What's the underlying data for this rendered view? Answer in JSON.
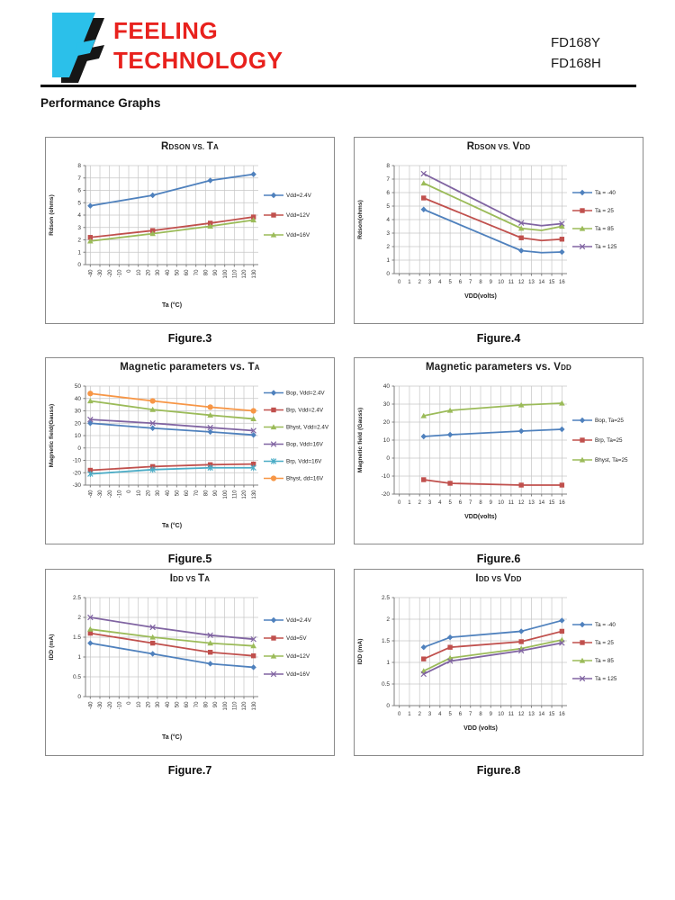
{
  "header": {
    "logo_letter": "F",
    "logo_color": "#2BC0EA",
    "logo_shadow_color": "#161616",
    "brand_line1": "FEELING",
    "brand_line2": "TECHNOLOGY",
    "brand_color": "#e8211d",
    "part_number_1": "FD168Y",
    "part_number_2": "FD168H"
  },
  "section_title": "Performance Graphs",
  "chart_data": [
    {
      "type": "line",
      "figure": "Figure.3",
      "title": [
        {
          "t": "R"
        },
        {
          "t": "dson",
          "small": true
        },
        {
          "t": " vs. ",
          "small": true
        },
        {
          "t": "T"
        },
        {
          "t": "a",
          "small": true
        }
      ],
      "xlabel": "Ta (°C)",
      "ylabel": "Rdson (ohms)",
      "ylim": [
        0,
        8
      ],
      "ystep": 1,
      "x_axis": {
        "mode": "rotated",
        "lim": [
          -45,
          135
        ],
        "ticks": [
          -40,
          -30,
          -20,
          -10,
          0,
          10,
          20,
          30,
          40,
          50,
          60,
          70,
          80,
          90,
          100,
          110,
          120,
          130
        ]
      },
      "legend_position": "right",
      "series": [
        {
          "name": "Vdd=2.4V",
          "color": "#4F81BD",
          "marker": "diamond",
          "points": [
            [
              -40,
              4.75
            ],
            [
              25,
              5.6
            ],
            [
              85,
              6.8
            ],
            [
              130,
              7.3
            ]
          ]
        },
        {
          "name": "Vdd=12V",
          "color": "#C0504D",
          "marker": "square",
          "points": [
            [
              -40,
              2.2
            ],
            [
              25,
              2.75
            ],
            [
              85,
              3.35
            ],
            [
              130,
              3.85
            ]
          ]
        },
        {
          "name": "Vdd=16V",
          "color": "#9BBB59",
          "marker": "triangle",
          "points": [
            [
              -40,
              1.9
            ],
            [
              25,
              2.5
            ],
            [
              85,
              3.1
            ],
            [
              130,
              3.6
            ]
          ]
        }
      ]
    },
    {
      "type": "line",
      "figure": "Figure.4",
      "title": [
        {
          "t": "R"
        },
        {
          "t": "dson",
          "small": true
        },
        {
          "t": " vs. ",
          "small": true
        },
        {
          "t": "V"
        },
        {
          "t": "dd",
          "small": true
        }
      ],
      "xlabel": "VDD(volts)",
      "ylabel": "Rdson(ohms)",
      "ylim": [
        0,
        8
      ],
      "ystep": 1,
      "x_axis": {
        "mode": "linear",
        "lim": [
          -0.5,
          16.5
        ],
        "ticks": [
          0,
          1,
          2,
          3,
          4,
          5,
          6,
          7,
          8,
          9,
          10,
          11,
          12,
          13,
          14,
          15,
          16
        ]
      },
      "legend_position": "right",
      "series": [
        {
          "name": "Ta = -40",
          "color": "#4F81BD",
          "marker": "diamond",
          "points": [
            [
              2.4,
              4.75
            ],
            [
              12,
              1.7
            ],
            [
              14,
              1.55,
              0
            ],
            [
              16,
              1.6
            ]
          ]
        },
        {
          "name": "Ta = 25",
          "color": "#C0504D",
          "marker": "square",
          "points": [
            [
              2.4,
              5.6
            ],
            [
              12,
              2.65
            ],
            [
              14,
              2.45,
              0
            ],
            [
              16,
              2.55
            ]
          ]
        },
        {
          "name": "Ta = 85",
          "color": "#9BBB59",
          "marker": "triangle",
          "points": [
            [
              2.4,
              6.7
            ],
            [
              12,
              3.35
            ],
            [
              14,
              3.2,
              0
            ],
            [
              16,
              3.5
            ]
          ]
        },
        {
          "name": "Ta = 125",
          "color": "#8064A2",
          "marker": "x",
          "points": [
            [
              2.4,
              7.4
            ],
            [
              12,
              3.75
            ],
            [
              14,
              3.55,
              0
            ],
            [
              16,
              3.7
            ]
          ]
        }
      ]
    },
    {
      "type": "line",
      "figure": "Figure.5",
      "title": [
        {
          "t": "Magnetic parameters vs. T"
        },
        {
          "t": "a",
          "small": true
        }
      ],
      "xlabel": "Ta (°C)",
      "ylabel": "Magnetic field(Gauss)",
      "ylim": [
        -30,
        50
      ],
      "ystep": 10,
      "x_axis": {
        "mode": "rotated",
        "lim": [
          -45,
          135
        ],
        "ticks": [
          -40,
          -30,
          -20,
          -10,
          0,
          10,
          20,
          30,
          40,
          50,
          60,
          70,
          80,
          90,
          100,
          110,
          120,
          130
        ]
      },
      "legend_position": "right",
      "series": [
        {
          "name": "Bop, Vdd=2.4V",
          "color": "#4F81BD",
          "marker": "diamond",
          "points": [
            [
              -40,
              20
            ],
            [
              25,
              16
            ],
            [
              85,
              13
            ],
            [
              130,
              10.5
            ]
          ]
        },
        {
          "name": "Brp, Vdd=2.4V",
          "color": "#C0504D",
          "marker": "square",
          "points": [
            [
              -40,
              -18
            ],
            [
              25,
              -15
            ],
            [
              85,
              -13.5
            ],
            [
              130,
              -13
            ]
          ]
        },
        {
          "name": "Bhyst, Vdd=2.4V",
          "color": "#9BBB59",
          "marker": "triangle",
          "points": [
            [
              -40,
              38
            ],
            [
              25,
              31
            ],
            [
              85,
              26.5
            ],
            [
              130,
              23.5
            ]
          ]
        },
        {
          "name": "Bop, Vdd=16V",
          "color": "#8064A2",
          "marker": "x",
          "points": [
            [
              -40,
              23
            ],
            [
              25,
              20
            ],
            [
              85,
              16.5
            ],
            [
              130,
              14
            ]
          ]
        },
        {
          "name": "Brp, Vdd=16V",
          "color": "#4BACC6",
          "marker": "star",
          "points": [
            [
              -40,
              -21
            ],
            [
              25,
              -17.5
            ],
            [
              85,
              -16
            ],
            [
              130,
              -16
            ]
          ]
        },
        {
          "name": "Bhyst, dd=16V",
          "color": "#F79646",
          "marker": "circle",
          "points": [
            [
              -40,
              44
            ],
            [
              25,
              38
            ],
            [
              85,
              33
            ],
            [
              130,
              30
            ]
          ]
        }
      ]
    },
    {
      "type": "line",
      "figure": "Figure.6",
      "title": [
        {
          "t": "Magnetic parameters vs. V"
        },
        {
          "t": "dd",
          "small": true
        }
      ],
      "xlabel": "VDD(volts)",
      "ylabel": "Magnetic field (Gauss)",
      "ylim": [
        -20,
        40
      ],
      "ystep": 10,
      "x_axis": {
        "mode": "linear",
        "lim": [
          -0.5,
          16.5
        ],
        "ticks": [
          0,
          1,
          2,
          3,
          4,
          5,
          6,
          7,
          8,
          9,
          10,
          11,
          12,
          13,
          14,
          15,
          16
        ]
      },
      "legend_position": "right",
      "series": [
        {
          "name": "Bop, Ta=25",
          "color": "#4F81BD",
          "marker": "diamond",
          "points": [
            [
              2.4,
              12
            ],
            [
              5,
              13
            ],
            [
              12,
              15
            ],
            [
              16,
              16
            ]
          ]
        },
        {
          "name": "Brp, Ta=25",
          "color": "#C0504D",
          "marker": "square",
          "points": [
            [
              2.4,
              -12
            ],
            [
              5,
              -14
            ],
            [
              12,
              -15
            ],
            [
              16,
              -15
            ]
          ]
        },
        {
          "name": "Bhyst, Ta=25",
          "color": "#9BBB59",
          "marker": "triangle",
          "points": [
            [
              2.4,
              23.5
            ],
            [
              5,
              26.5
            ],
            [
              12,
              29.5
            ],
            [
              16,
              30.5
            ]
          ]
        }
      ]
    },
    {
      "type": "line",
      "figure": "Figure.7",
      "title": [
        {
          "t": "I"
        },
        {
          "t": "dd",
          "small": true
        },
        {
          "t": " vs ",
          "small": true
        },
        {
          "t": "T"
        },
        {
          "t": "a",
          "small": true
        }
      ],
      "xlabel": "Ta (°C)",
      "ylabel": "IDD (mA)",
      "ylim": [
        0,
        2.5
      ],
      "ystep": 0.5,
      "x_axis": {
        "mode": "rotated",
        "lim": [
          -45,
          135
        ],
        "ticks": [
          -40,
          -30,
          -20,
          -10,
          0,
          10,
          20,
          30,
          40,
          50,
          60,
          70,
          80,
          90,
          100,
          110,
          120,
          130
        ]
      },
      "legend_position": "right",
      "series": [
        {
          "name": "Vdd=2.4V",
          "color": "#4F81BD",
          "marker": "diamond",
          "points": [
            [
              -40,
              1.35
            ],
            [
              25,
              1.08
            ],
            [
              85,
              0.83
            ],
            [
              130,
              0.74
            ]
          ]
        },
        {
          "name": "Vdd=5V",
          "color": "#C0504D",
          "marker": "square",
          "points": [
            [
              -40,
              1.6
            ],
            [
              25,
              1.35
            ],
            [
              85,
              1.12
            ],
            [
              130,
              1.03
            ]
          ]
        },
        {
          "name": "Vdd=12V",
          "color": "#9BBB59",
          "marker": "triangle",
          "points": [
            [
              -40,
              1.7
            ],
            [
              25,
              1.5
            ],
            [
              85,
              1.35
            ],
            [
              130,
              1.28
            ]
          ]
        },
        {
          "name": "Vdd=16V",
          "color": "#8064A2",
          "marker": "x",
          "points": [
            [
              -40,
              2.0
            ],
            [
              25,
              1.75
            ],
            [
              85,
              1.55
            ],
            [
              130,
              1.45
            ]
          ]
        }
      ]
    },
    {
      "type": "line",
      "figure": "Figure.8",
      "title": [
        {
          "t": "I"
        },
        {
          "t": "dd",
          "small": true
        },
        {
          "t": " vs ",
          "small": true
        },
        {
          "t": "V"
        },
        {
          "t": "dd",
          "small": true
        }
      ],
      "xlabel": "VDD (volts)",
      "ylabel": "IDD (mA)",
      "ylim": [
        0,
        2.5
      ],
      "ystep": 0.5,
      "x_axis": {
        "mode": "linear",
        "lim": [
          -0.5,
          16.5
        ],
        "ticks": [
          0,
          1,
          2,
          3,
          4,
          5,
          6,
          7,
          8,
          9,
          10,
          11,
          12,
          13,
          14,
          15,
          16
        ]
      },
      "legend_position": "right",
      "series": [
        {
          "name": "Ta = -40",
          "color": "#4F81BD",
          "marker": "diamond",
          "points": [
            [
              2.4,
              1.35
            ],
            [
              5,
              1.58
            ],
            [
              12,
              1.72
            ],
            [
              16,
              1.97
            ]
          ]
        },
        {
          "name": "Ta = 25",
          "color": "#C0504D",
          "marker": "square",
          "points": [
            [
              2.4,
              1.08
            ],
            [
              5,
              1.35
            ],
            [
              12,
              1.48
            ],
            [
              16,
              1.72
            ]
          ]
        },
        {
          "name": "Ta = 85",
          "color": "#9BBB59",
          "marker": "triangle",
          "points": [
            [
              2.4,
              0.8
            ],
            [
              5,
              1.1
            ],
            [
              12,
              1.32
            ],
            [
              16,
              1.52
            ]
          ]
        },
        {
          "name": "Ta = 125",
          "color": "#8064A2",
          "marker": "x",
          "points": [
            [
              2.4,
              0.73
            ],
            [
              5,
              1.03
            ],
            [
              12,
              1.27
            ],
            [
              16,
              1.45
            ]
          ]
        }
      ]
    }
  ]
}
